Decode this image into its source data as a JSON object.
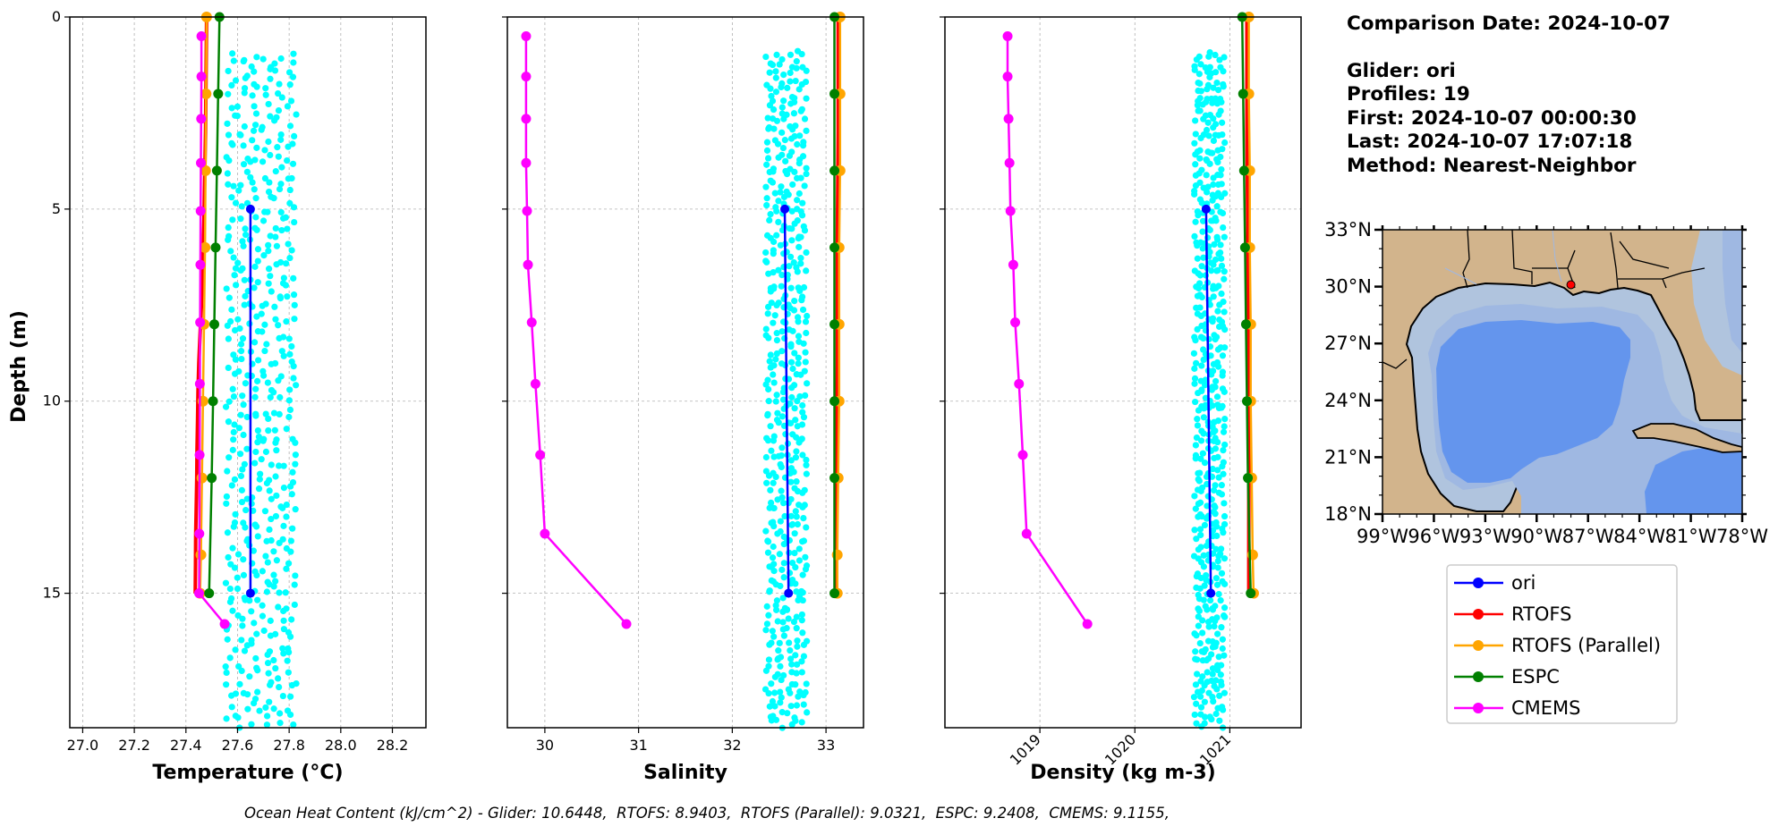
{
  "figure": {
    "ylabel": "Depth (m)",
    "info": {
      "comparison_date": "Comparison Date: 2024-10-07",
      "glider": "Glider: ori",
      "profiles": "Profiles: 19",
      "first": "First: 2024-10-07 00:00:30",
      "last": "Last: 2024-10-07 17:07:18",
      "method": "Method: Nearest-Neighbor"
    },
    "footer": "Ocean Heat Content (kJ/cm^2) - Glider: 10.6448,  RTOFS: 8.9403,  RTOFS (Parallel): 9.0321,  ESPC: 9.2408,  CMEMS: 9.1155,",
    "legend": [
      {
        "name": "ori",
        "color": "#0000ff"
      },
      {
        "name": "RTOFS",
        "color": "#ff0000"
      },
      {
        "name": "RTOFS (Parallel)",
        "color": "#ffa500"
      },
      {
        "name": "ESPC",
        "color": "#008000"
      },
      {
        "name": "CMEMS",
        "color": "#ff00ff"
      }
    ],
    "map": {
      "lat_ticks": [
        "33°N",
        "30°N",
        "27°N",
        "24°N",
        "21°N",
        "18°N"
      ],
      "lon_ticks": [
        "99°W",
        "96°W",
        "93°W",
        "90°W",
        "87°W",
        "84°W",
        "81°W",
        "78°W"
      ],
      "glider_location": {
        "lon": -88.0,
        "lat": 30.1
      },
      "colors": {
        "land": "#d2b48c",
        "shelf": "#b0c4de",
        "mid": "#9fb8e2",
        "deep": "#6495ed"
      }
    }
  },
  "chart_data": [
    {
      "type": "line",
      "xlabel": "Temperature (°C)",
      "xlim": [
        26.95,
        28.33
      ],
      "ylim": [
        18.5,
        0
      ],
      "xticks": [
        27.0,
        27.2,
        27.4,
        27.6,
        27.8,
        28.0,
        28.2
      ],
      "yticks": [
        0,
        5,
        10,
        15
      ],
      "tick_decimals": 1,
      "tick_rotate": false,
      "grid": true,
      "glider_scatter": {
        "color": "#00ffff",
        "xmin": 27.55,
        "xmax": 27.83,
        "depth_min": 1.0,
        "depth_max": 18.5
      },
      "series": [
        {
          "name": "ori",
          "color": "#0000ff",
          "x": [
            27.65,
            27.65
          ],
          "y": [
            5,
            15
          ],
          "marker": 5
        },
        {
          "name": "RTOFS",
          "color": "#ff0000",
          "x": [
            27.48,
            27.479,
            27.478,
            27.477,
            27.476,
            27.474,
            27.472,
            27.47,
            27.467,
            27.464,
            27.46,
            27.455,
            27.45,
            27.447,
            27.445,
            27.443,
            27.442,
            27.44,
            27.438,
            27.437,
            27.436
          ],
          "y": [
            0,
            0.75,
            1.5,
            2.25,
            3.0,
            3.75,
            4.5,
            5.25,
            6.0,
            6.75,
            7.5,
            8.25,
            9.0,
            9.75,
            10.5,
            11.25,
            12.0,
            12.75,
            13.5,
            14.25,
            15.0
          ],
          "marker": 0
        },
        {
          "name": "RTOFS (Parallel)",
          "color": "#ffa500",
          "x": [
            27.48,
            27.478,
            27.476,
            27.474,
            27.47,
            27.466,
            27.462,
            27.458,
            27.455
          ],
          "y": [
            0,
            2,
            4,
            6,
            8,
            10,
            12,
            14,
            15
          ],
          "marker": 6
        },
        {
          "name": "ESPC",
          "color": "#008000",
          "x": [
            27.53,
            27.525,
            27.52,
            27.515,
            27.51,
            27.505,
            27.5,
            27.49
          ],
          "y": [
            0,
            2,
            4,
            6,
            8,
            10,
            12,
            15
          ],
          "marker": 5.5
        },
        {
          "name": "CMEMS",
          "color": "#ff00ff",
          "x": [
            27.46,
            27.46,
            27.459,
            27.458,
            27.457,
            27.456,
            27.455,
            27.454,
            27.453,
            27.452,
            27.451,
            27.55
          ],
          "y": [
            0.5,
            1.55,
            2.65,
            3.8,
            5.05,
            6.45,
            7.95,
            9.55,
            11.4,
            13.45,
            15.0,
            15.8
          ],
          "marker": 5.5
        }
      ]
    },
    {
      "type": "line",
      "xlabel": "Salinity",
      "xlim": [
        29.6,
        33.4
      ],
      "ylim": [
        18.5,
        0
      ],
      "xticks": [
        30,
        31,
        32,
        33
      ],
      "yticks": [
        0,
        5,
        10,
        15
      ],
      "tick_decimals": 0,
      "tick_rotate": false,
      "grid": true,
      "glider_scatter": {
        "color": "#00ffff",
        "xmin": 32.35,
        "xmax": 32.8,
        "depth_min": 1.0,
        "depth_max": 18.5
      },
      "series": [
        {
          "name": "ori",
          "color": "#0000ff",
          "x": [
            32.56,
            32.6
          ],
          "y": [
            5,
            15
          ],
          "marker": 5
        },
        {
          "name": "RTOFS",
          "color": "#ff0000",
          "x": [
            33.13,
            33.13,
            33.12,
            33.12,
            33.11,
            33.11
          ],
          "y": [
            0,
            3,
            6,
            9,
            12,
            15
          ],
          "marker": 0
        },
        {
          "name": "RTOFS (Parallel)",
          "color": "#ffa500",
          "x": [
            33.15,
            33.15,
            33.15,
            33.14,
            33.14,
            33.14,
            33.13,
            33.12,
            33.12
          ],
          "y": [
            0,
            2,
            4,
            6,
            8,
            10,
            12,
            14,
            15
          ],
          "marker": 6
        },
        {
          "name": "ESPC",
          "color": "#008000",
          "x": [
            33.09,
            33.09,
            33.09,
            33.09,
            33.09,
            33.09,
            33.09,
            33.09
          ],
          "y": [
            0,
            2,
            4,
            6,
            8,
            10,
            12,
            15
          ],
          "marker": 5.5
        },
        {
          "name": "CMEMS",
          "color": "#ff00ff",
          "x": [
            29.8,
            29.8,
            29.8,
            29.8,
            29.81,
            29.82,
            29.86,
            29.9,
            29.95,
            30.0,
            30.87
          ],
          "y": [
            0.5,
            1.55,
            2.65,
            3.8,
            5.05,
            6.45,
            7.95,
            9.55,
            11.4,
            13.45,
            15.8
          ],
          "marker": 5.5
        }
      ]
    },
    {
      "type": "line",
      "xlabel": "Density (kg m-3)",
      "xlim": [
        1018.0,
        1021.75
      ],
      "ylim": [
        18.5,
        0
      ],
      "xticks": [
        1019,
        1020,
        1021
      ],
      "yticks": [
        0,
        5,
        10,
        15
      ],
      "tick_decimals": 0,
      "tick_rotate": true,
      "grid": true,
      "glider_scatter": {
        "color": "#00ffff",
        "xmin": 1020.62,
        "xmax": 1020.95,
        "depth_min": 1.0,
        "depth_max": 18.5
      },
      "series": [
        {
          "name": "ori",
          "color": "#0000ff",
          "x": [
            1020.75,
            1020.8
          ],
          "y": [
            5,
            15
          ],
          "marker": 5
        },
        {
          "name": "RTOFS",
          "color": "#ff0000",
          "x": [
            1021.18,
            1021.18,
            1021.19,
            1021.19,
            1021.2,
            1021.2
          ],
          "y": [
            0,
            3,
            6,
            9,
            12,
            15
          ],
          "marker": 0
        },
        {
          "name": "RTOFS (Parallel)",
          "color": "#ffa500",
          "x": [
            1021.2,
            1021.2,
            1021.21,
            1021.21,
            1021.22,
            1021.22,
            1021.23,
            1021.24,
            1021.25
          ],
          "y": [
            0,
            2,
            4,
            6,
            8,
            10,
            12,
            14,
            15
          ],
          "marker": 6
        },
        {
          "name": "ESPC",
          "color": "#008000",
          "x": [
            1021.13,
            1021.14,
            1021.15,
            1021.16,
            1021.17,
            1021.18,
            1021.19,
            1021.22
          ],
          "y": [
            0,
            2,
            4,
            6,
            8,
            10,
            12,
            15
          ],
          "marker": 5.5
        },
        {
          "name": "CMEMS",
          "color": "#ff00ff",
          "x": [
            1018.66,
            1018.66,
            1018.67,
            1018.68,
            1018.69,
            1018.72,
            1018.74,
            1018.78,
            1018.82,
            1018.86,
            1019.5
          ],
          "y": [
            0.5,
            1.55,
            2.65,
            3.8,
            5.05,
            6.45,
            7.95,
            9.55,
            11.4,
            13.45,
            15.8
          ],
          "marker": 5.5
        }
      ]
    }
  ]
}
